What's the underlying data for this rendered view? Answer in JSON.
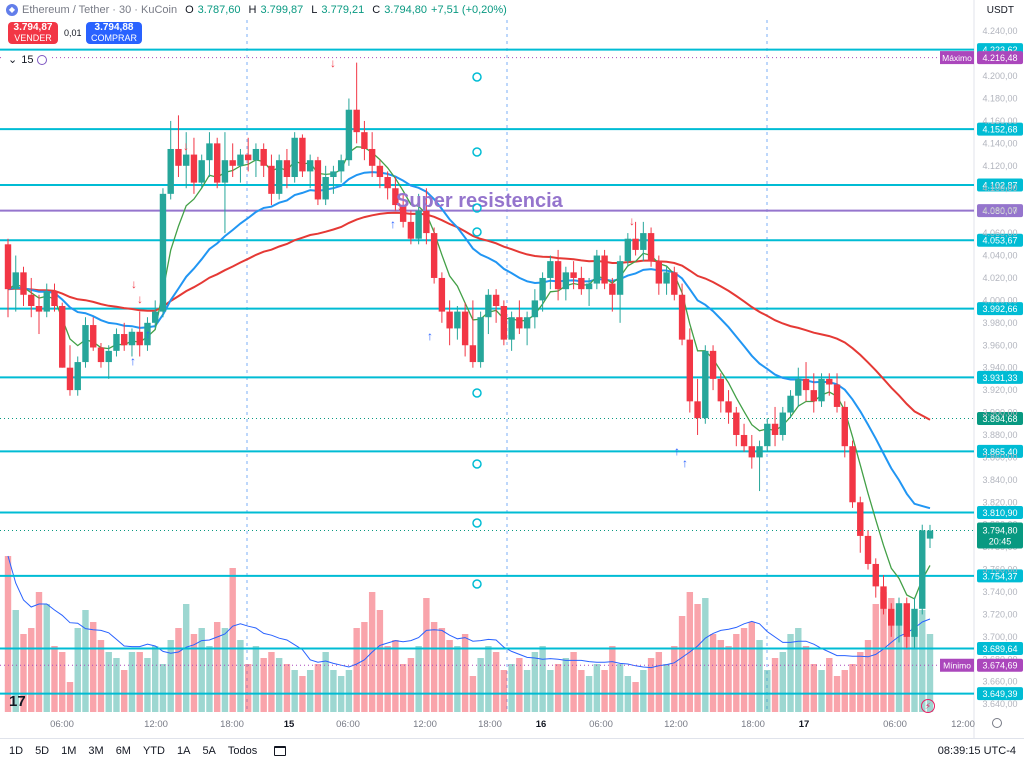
{
  "header": {
    "symbol": "Ethereum / Tether · 30 · KuCoin",
    "o_label": "O",
    "o_value": "3.787,60",
    "h_label": "H",
    "h_value": "3.799,87",
    "l_label": "L",
    "l_value": "3.779,21",
    "c_label": "C",
    "c_value": "3.794,80",
    "change": "+7,51 (+0,20%)"
  },
  "trade": {
    "sell_price": "3.794,87",
    "sell_label": "VENDER",
    "spread": "0,01",
    "buy_price": "3.794,88",
    "buy_label": "COMPRAR"
  },
  "indicator": {
    "label": "15"
  },
  "currency": "USDT",
  "annotation": "Super resistencia",
  "bottom_bar": {
    "timeframes": [
      "1D",
      "5D",
      "1M",
      "3M",
      "6M",
      "YTD",
      "1A",
      "5A",
      "Todos"
    ],
    "clock": "08:39:15 UTC-4"
  },
  "colors": {
    "up": "#26a69a",
    "down": "#f23645",
    "level_line": "#00bcd4",
    "purple": "#9575cd",
    "ema_fast": "#43a047",
    "ema_mid": "#2196f3",
    "ema_slow": "#e53935"
  },
  "chart_data": {
    "type": "candlestick",
    "interval": "30m",
    "ylim": [
      3633,
      4250
    ],
    "y_ticks": [
      "4.240,00",
      "4.220,00",
      "4.200,00",
      "4.180,00",
      "4.160,00",
      "4.140,00",
      "4.120,00",
      "4.100,00",
      "4.080,00",
      "4.060,00",
      "4.040,00",
      "4.020,00",
      "4.000,00",
      "3.980,00",
      "3.960,00",
      "3.940,00",
      "3.920,00",
      "3.900,00",
      "3.880,00",
      "3.860,00",
      "3.840,00",
      "3.820,00",
      "3.800,00",
      "3.780,00",
      "3.760,00",
      "3.740,00",
      "3.720,00",
      "3.700,00",
      "3.680,00",
      "3.660,00",
      "3.640,00"
    ],
    "x_ticks": [
      "06:00",
      "12:00",
      "18:00",
      "15",
      "06:00",
      "12:00",
      "18:00",
      "16",
      "06:00",
      "12:00",
      "18:00",
      "17",
      "06:00",
      "12:00"
    ],
    "horizontal_levels": [
      {
        "value": 4223.62,
        "label": "4.223,62",
        "color": "#00bcd4"
      },
      {
        "value": 4152.68,
        "label": "4.152,68",
        "color": "#00bcd4"
      },
      {
        "value": 4102.87,
        "label": "4.102,87",
        "color": "#00bcd4"
      },
      {
        "value": 4080.07,
        "label": "4.080,07",
        "color": "#9575cd"
      },
      {
        "value": 4053.67,
        "label": "4.053,67",
        "color": "#00bcd4"
      },
      {
        "value": 3992.66,
        "label": "3.992,66",
        "color": "#00bcd4"
      },
      {
        "value": 3931.33,
        "label": "3.931,33",
        "color": "#00bcd4"
      },
      {
        "value": 3894.68,
        "label": "3.894,68",
        "color": "#089981",
        "dotted": true
      },
      {
        "value": 3865.4,
        "label": "3.865,40",
        "color": "#00bcd4"
      },
      {
        "value": 3810.9,
        "label": "3.810,90",
        "color": "#00bcd4"
      },
      {
        "value": 3754.37,
        "label": "3.754,37",
        "color": "#00bcd4"
      },
      {
        "value": 3689.64,
        "label": "3.689,64",
        "color": "#00bcd4"
      },
      {
        "value": 3649.39,
        "label": "3.649,39",
        "color": "#00bcd4"
      }
    ],
    "max_marker": {
      "label": "Máximo",
      "value_label": "4.216,48",
      "value": 4216.48
    },
    "min_marker": {
      "label": "Mínimo",
      "value_label": "3.674,69",
      "value": 3674.69
    },
    "last_price": {
      "value": 3794.8,
      "label": "3.794,80",
      "countdown": "20:45"
    },
    "ohlc": [
      [
        4050,
        4055,
        3985,
        4010
      ],
      [
        4010,
        4040,
        3990,
        4025
      ],
      [
        4025,
        4030,
        3995,
        4005
      ],
      [
        4005,
        4020,
        3985,
        3995
      ],
      [
        3995,
        4005,
        3970,
        3990
      ],
      [
        3990,
        4015,
        3985,
        4008
      ],
      [
        4008,
        4015,
        3990,
        3995
      ],
      [
        3995,
        3998,
        3940,
        3940
      ],
      [
        3940,
        3960,
        3915,
        3920
      ],
      [
        3920,
        3950,
        3915,
        3945
      ],
      [
        3945,
        3985,
        3940,
        3978
      ],
      [
        3978,
        3985,
        3955,
        3958
      ],
      [
        3958,
        3962,
        3940,
        3945
      ],
      [
        3945,
        3960,
        3930,
        3955
      ],
      [
        3955,
        3975,
        3950,
        3970
      ],
      [
        3970,
        3980,
        3955,
        3960
      ],
      [
        3960,
        3975,
        3950,
        3972
      ],
      [
        3972,
        3990,
        3950,
        3960
      ],
      [
        3960,
        3985,
        3955,
        3980
      ],
      [
        3980,
        4000,
        3975,
        3990
      ],
      [
        3990,
        4100,
        3985,
        4095
      ],
      [
        4095,
        4160,
        4090,
        4135
      ],
      [
        4135,
        4165,
        4110,
        4120
      ],
      [
        4120,
        4150,
        4100,
        4130
      ],
      [
        4130,
        4145,
        4095,
        4105
      ],
      [
        4105,
        4130,
        4100,
        4125
      ],
      [
        4125,
        4150,
        4110,
        4140
      ],
      [
        4140,
        4145,
        4100,
        4105
      ],
      [
        4105,
        4150,
        4060,
        4125
      ],
      [
        4125,
        4140,
        4110,
        4120
      ],
      [
        4120,
        4135,
        4105,
        4130
      ],
      [
        4130,
        4145,
        4115,
        4125
      ],
      [
        4125,
        4140,
        4110,
        4135
      ],
      [
        4135,
        4140,
        4110,
        4120
      ],
      [
        4120,
        4130,
        4085,
        4095
      ],
      [
        4095,
        4130,
        4090,
        4125
      ],
      [
        4125,
        4135,
        4100,
        4110
      ],
      [
        4110,
        4150,
        4105,
        4145
      ],
      [
        4145,
        4148,
        4110,
        4115
      ],
      [
        4115,
        4130,
        4100,
        4125
      ],
      [
        4125,
        4128,
        4085,
        4090
      ],
      [
        4090,
        4120,
        4085,
        4110
      ],
      [
        4110,
        4120,
        4095,
        4115
      ],
      [
        4115,
        4130,
        4105,
        4125
      ],
      [
        4125,
        4180,
        4120,
        4170
      ],
      [
        4170,
        4212,
        4140,
        4150
      ],
      [
        4150,
        4160,
        4125,
        4135
      ],
      [
        4135,
        4150,
        4110,
        4120
      ],
      [
        4120,
        4125,
        4100,
        4110
      ],
      [
        4110,
        4115,
        4090,
        4100
      ],
      [
        4100,
        4110,
        4080,
        4085
      ],
      [
        4085,
        4095,
        4065,
        4070
      ],
      [
        4070,
        4080,
        4050,
        4055
      ],
      [
        4055,
        4095,
        4050,
        4080
      ],
      [
        4080,
        4100,
        4050,
        4060
      ],
      [
        4060,
        4065,
        4015,
        4020
      ],
      [
        4020,
        4025,
        3980,
        3990
      ],
      [
        3990,
        4000,
        3960,
        3975
      ],
      [
        3975,
        3995,
        3965,
        3990
      ],
      [
        3990,
        3998,
        3950,
        3960
      ],
      [
        3960,
        4000,
        3940,
        3945
      ],
      [
        3945,
        3990,
        3940,
        3985
      ],
      [
        3985,
        4010,
        3970,
        4005
      ],
      [
        4005,
        4010,
        3980,
        3995
      ],
      [
        3995,
        4000,
        3960,
        3965
      ],
      [
        3965,
        3990,
        3955,
        3985
      ],
      [
        3985,
        4000,
        3970,
        3975
      ],
      [
        3975,
        3990,
        3960,
        3985
      ],
      [
        3985,
        4010,
        3975,
        4000
      ],
      [
        4000,
        4025,
        3990,
        4020
      ],
      [
        4020,
        4040,
        4010,
        4035
      ],
      [
        4035,
        4045,
        4000,
        4010
      ],
      [
        4010,
        4030,
        4000,
        4025
      ],
      [
        4025,
        4035,
        4010,
        4020
      ],
      [
        4020,
        4030,
        4005,
        4010
      ],
      [
        4010,
        4020,
        3995,
        4015
      ],
      [
        4015,
        4045,
        4010,
        4040
      ],
      [
        4040,
        4045,
        4010,
        4015
      ],
      [
        4015,
        4020,
        3990,
        4005
      ],
      [
        4005,
        4040,
        3980,
        4035
      ],
      [
        4035,
        4060,
        4030,
        4055
      ],
      [
        4055,
        4070,
        4040,
        4045
      ],
      [
        4045,
        4070,
        4035,
        4060
      ],
      [
        4060,
        4065,
        4030,
        4035
      ],
      [
        4035,
        4040,
        4005,
        4015
      ],
      [
        4015,
        4030,
        4005,
        4025
      ],
      [
        4025,
        4030,
        4000,
        4005
      ],
      [
        4005,
        4015,
        3960,
        3965
      ],
      [
        3965,
        3975,
        3900,
        3910
      ],
      [
        3910,
        3930,
        3880,
        3895
      ],
      [
        3895,
        3960,
        3890,
        3955
      ],
      [
        3955,
        3960,
        3920,
        3930
      ],
      [
        3930,
        3935,
        3900,
        3910
      ],
      [
        3910,
        3920,
        3890,
        3900
      ],
      [
        3900,
        3905,
        3870,
        3880
      ],
      [
        3880,
        3890,
        3865,
        3870
      ],
      [
        3870,
        3880,
        3850,
        3860
      ],
      [
        3860,
        3875,
        3830,
        3870
      ],
      [
        3870,
        3895,
        3865,
        3890
      ],
      [
        3890,
        3905,
        3870,
        3880
      ],
      [
        3880,
        3905,
        3875,
        3900
      ],
      [
        3900,
        3920,
        3895,
        3915
      ],
      [
        3915,
        3940,
        3905,
        3930
      ],
      [
        3930,
        3945,
        3910,
        3920
      ],
      [
        3920,
        3935,
        3900,
        3910
      ],
      [
        3910,
        3935,
        3905,
        3930
      ],
      [
        3930,
        3935,
        3915,
        3925
      ],
      [
        3925,
        3935,
        3900,
        3905
      ],
      [
        3905,
        3910,
        3860,
        3870
      ],
      [
        3870,
        3875,
        3815,
        3820
      ],
      [
        3820,
        3825,
        3775,
        3790
      ],
      [
        3790,
        3795,
        3760,
        3765
      ],
      [
        3765,
        3770,
        3735,
        3745
      ],
      [
        3745,
        3755,
        3720,
        3725
      ],
      [
        3725,
        3730,
        3700,
        3710
      ],
      [
        3710,
        3735,
        3695,
        3730
      ],
      [
        3730,
        3735,
        3690,
        3700
      ],
      [
        3700,
        3735,
        3690,
        3725
      ],
      [
        3725,
        3800,
        3720,
        3795
      ],
      [
        3787.6,
        3799.87,
        3779.21,
        3794.8
      ]
    ],
    "volume": [
      52,
      34,
      26,
      28,
      40,
      36,
      22,
      20,
      10,
      28,
      34,
      30,
      24,
      20,
      18,
      14,
      20,
      20,
      18,
      22,
      16,
      24,
      28,
      36,
      26,
      28,
      22,
      30,
      28,
      48,
      24,
      16,
      22,
      18,
      20,
      18,
      16,
      14,
      12,
      14,
      16,
      20,
      14,
      12,
      14,
      28,
      30,
      40,
      34,
      22,
      24,
      16,
      18,
      22,
      38,
      30,
      28,
      24,
      22,
      26,
      12,
      18,
      22,
      20,
      14,
      16,
      18,
      14,
      20,
      22,
      14,
      16,
      18,
      20,
      14,
      12,
      16,
      14,
      22,
      16,
      12,
      10,
      14,
      18,
      20,
      16,
      22,
      32,
      40,
      36,
      38,
      26,
      24,
      22,
      26,
      28,
      30,
      24,
      14,
      18,
      20,
      26,
      28,
      22,
      16,
      14,
      18,
      12,
      14,
      16,
      20,
      24,
      36,
      40,
      38,
      34,
      30,
      28,
      34,
      26
    ]
  }
}
